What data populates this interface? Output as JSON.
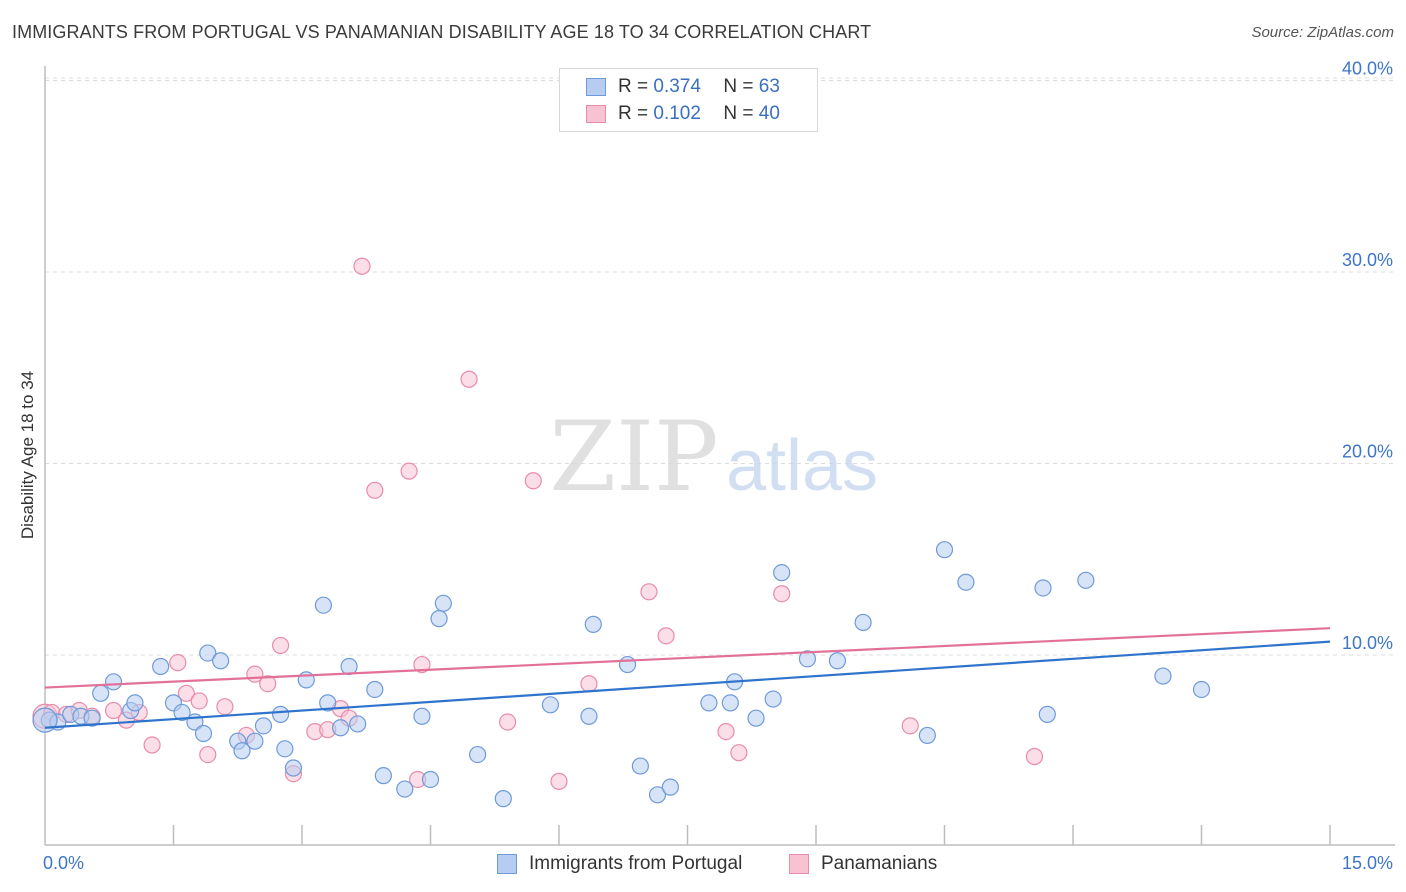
{
  "title": "IMMIGRANTS FROM PORTUGAL VS PANAMANIAN DISABILITY AGE 18 TO 34 CORRELATION CHART",
  "source": "Source: ZipAtlas.com",
  "watermark": {
    "zip": "ZIP",
    "atlas": "atlas"
  },
  "legend": {
    "rows": [
      {
        "r_label": "R =",
        "r_value": "0.374",
        "n_label": "N =",
        "n_value": "63"
      },
      {
        "r_label": "R =",
        "r_value": "0.102",
        "n_label": "N =",
        "n_value": "40"
      }
    ]
  },
  "bottom_legend": [
    "Immigrants from Portugal",
    "Panamanians"
  ],
  "colors": {
    "blue_fill": "#b6cdf1",
    "blue_stroke": "#6f9ad9",
    "blue_line": "#2f74cc",
    "pink_fill": "#f7c3d3",
    "pink_stroke": "#e88cab",
    "pink_line": "#e2719a",
    "tick_text": "#3d75c8",
    "grid": "#dcdcdc"
  },
  "chart_data": {
    "type": "scatter",
    "title": "IMMIGRANTS FROM PORTUGAL VS PANAMANIAN DISABILITY AGE 18 TO 34 CORRELATION CHART",
    "xlabel": "",
    "ylabel": "Disability Age 18 to 34",
    "xlim": [
      0,
      15
    ],
    "ylim": [
      0,
      40
    ],
    "x_tick_labels": [
      "0.0%",
      "15.0%"
    ],
    "y_ticks": [
      10,
      20,
      30,
      40
    ],
    "y_tick_labels": [
      "10.0%",
      "20.0%",
      "30.0%",
      "40.0%"
    ],
    "grid": true,
    "series": [
      {
        "name": "Immigrants from Portugal",
        "r": 0.374,
        "n": 63,
        "trend": {
          "x": [
            0,
            15
          ],
          "y": [
            6.2,
            10.7
          ]
        },
        "points": [
          [
            0.05,
            6.6
          ],
          [
            0.15,
            6.5
          ],
          [
            0.3,
            6.9
          ],
          [
            0.42,
            6.8
          ],
          [
            0.55,
            6.7
          ],
          [
            0.65,
            8.0
          ],
          [
            0.8,
            8.6
          ],
          [
            1.0,
            7.1
          ],
          [
            1.05,
            7.5
          ],
          [
            1.35,
            9.4
          ],
          [
            1.5,
            7.5
          ],
          [
            1.6,
            7.0
          ],
          [
            1.75,
            6.5
          ],
          [
            1.85,
            5.9
          ],
          [
            1.9,
            10.1
          ],
          [
            2.05,
            9.7
          ],
          [
            2.25,
            5.5
          ],
          [
            2.3,
            5.0
          ],
          [
            2.45,
            5.5
          ],
          [
            2.55,
            6.3
          ],
          [
            2.75,
            6.9
          ],
          [
            2.8,
            5.1
          ],
          [
            2.9,
            4.1
          ],
          [
            3.05,
            8.7
          ],
          [
            3.25,
            12.6
          ],
          [
            3.3,
            7.5
          ],
          [
            3.45,
            6.2
          ],
          [
            3.55,
            9.4
          ],
          [
            3.65,
            6.4
          ],
          [
            3.85,
            8.2
          ],
          [
            3.95,
            3.7
          ],
          [
            4.2,
            3.0
          ],
          [
            4.4,
            6.8
          ],
          [
            4.5,
            3.5
          ],
          [
            4.6,
            11.9
          ],
          [
            4.65,
            12.7
          ],
          [
            5.05,
            4.8
          ],
          [
            5.35,
            2.5
          ],
          [
            5.9,
            7.4
          ],
          [
            6.35,
            6.8
          ],
          [
            6.4,
            11.6
          ],
          [
            6.8,
            9.5
          ],
          [
            6.95,
            4.2
          ],
          [
            7.15,
            2.7
          ],
          [
            7.3,
            3.1
          ],
          [
            7.75,
            7.5
          ],
          [
            8.0,
            7.5
          ],
          [
            8.05,
            8.6
          ],
          [
            8.3,
            6.7
          ],
          [
            8.5,
            7.7
          ],
          [
            8.6,
            14.3
          ],
          [
            8.9,
            9.8
          ],
          [
            9.25,
            9.7
          ],
          [
            9.55,
            11.7
          ],
          [
            10.3,
            5.8
          ],
          [
            10.5,
            15.5
          ],
          [
            10.75,
            13.8
          ],
          [
            11.65,
            13.5
          ],
          [
            11.7,
            6.9
          ],
          [
            12.15,
            13.9
          ],
          [
            13.05,
            8.9
          ],
          [
            13.5,
            8.2
          ],
          [
            0.0,
            6.6
          ]
        ]
      },
      {
        "name": "Panamanians",
        "r": 0.102,
        "n": 40,
        "trend": {
          "x": [
            0,
            15
          ],
          "y": [
            8.3,
            11.4
          ]
        },
        "points": [
          [
            0.0,
            6.8
          ],
          [
            0.08,
            7.0
          ],
          [
            0.25,
            6.9
          ],
          [
            0.4,
            7.1
          ],
          [
            0.55,
            6.8
          ],
          [
            0.8,
            7.1
          ],
          [
            0.95,
            6.6
          ],
          [
            1.1,
            7.0
          ],
          [
            1.25,
            5.3
          ],
          [
            1.55,
            9.6
          ],
          [
            1.65,
            8.0
          ],
          [
            1.8,
            7.6
          ],
          [
            1.9,
            4.8
          ],
          [
            2.1,
            7.3
          ],
          [
            2.35,
            5.8
          ],
          [
            2.45,
            9.0
          ],
          [
            2.6,
            8.5
          ],
          [
            2.75,
            10.5
          ],
          [
            2.9,
            3.8
          ],
          [
            3.15,
            6.0
          ],
          [
            3.3,
            6.1
          ],
          [
            3.45,
            7.2
          ],
          [
            3.55,
            6.7
          ],
          [
            3.7,
            30.3
          ],
          [
            3.85,
            18.6
          ],
          [
            4.25,
            19.6
          ],
          [
            4.35,
            3.5
          ],
          [
            4.4,
            9.5
          ],
          [
            4.95,
            24.4
          ],
          [
            5.4,
            6.5
          ],
          [
            5.7,
            19.1
          ],
          [
            6.0,
            3.4
          ],
          [
            6.35,
            8.5
          ],
          [
            7.05,
            13.3
          ],
          [
            7.25,
            11.0
          ],
          [
            7.95,
            6.0
          ],
          [
            8.1,
            4.9
          ],
          [
            8.6,
            13.2
          ],
          [
            10.1,
            6.3
          ],
          [
            11.55,
            4.7
          ]
        ]
      }
    ]
  }
}
